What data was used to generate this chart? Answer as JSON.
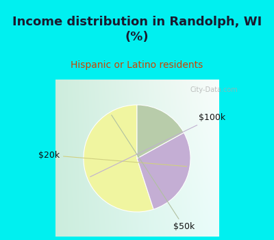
{
  "title": "Income distribution in Randolph, WI\n(%)",
  "subtitle": "Hispanic or Latino residents",
  "slices": [
    {
      "label": "$20k",
      "value": 55,
      "color": "#f0f5a0"
    },
    {
      "label": "$100k",
      "value": 28,
      "color": "#c4aed4"
    },
    {
      "label": "$50k",
      "value": 17,
      "color": "#b8ccaa"
    }
  ],
  "bg_color_top": "#00f0f0",
  "title_color": "#1a1a2e",
  "subtitle_color": "#cc4400",
  "label_color": "#111111",
  "start_angle": 90,
  "watermark": "City-Data.com",
  "title_fontsize": 13,
  "subtitle_fontsize": 10,
  "label_fontsize": 9
}
